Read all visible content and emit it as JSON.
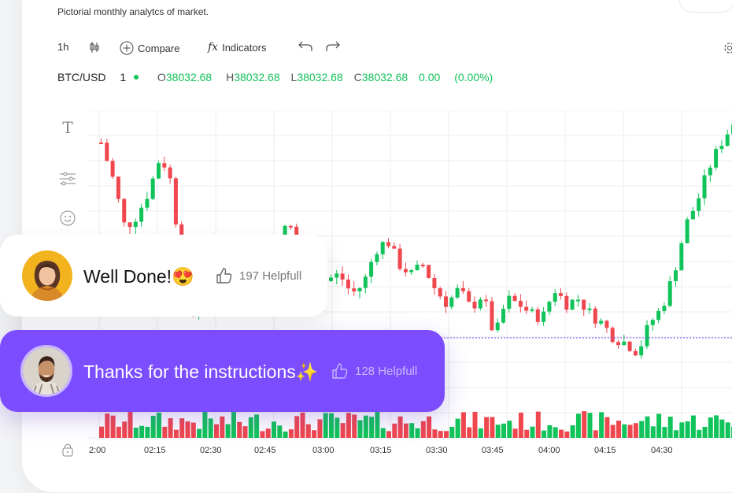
{
  "header": {
    "subtitle": "Pictorial monthly analytcs of market."
  },
  "toolbar": {
    "interval": "1h",
    "compare": "Compare",
    "indicators_glyph": "fx",
    "indicators": "Indicators"
  },
  "symbol": {
    "name": "BTC/USD",
    "interval": "1",
    "o_label": "O",
    "o": "38032.68",
    "h_label": "H",
    "h": "38032.68",
    "l_label": "L",
    "l": "38032.68",
    "c_label": "C",
    "c": "38032.68",
    "change": "0.00",
    "change_pct": "(0.00%)"
  },
  "xaxis": {
    "labels": [
      "2:00",
      "02:15",
      "02:30",
      "02:45",
      "03:00",
      "03:15",
      "03:30",
      "03:45",
      "04:00",
      "04:15",
      "04:30"
    ]
  },
  "chart_data": {
    "type": "candlestick",
    "x": [
      "2:00",
      "02:15",
      "02:30",
      "02:45",
      "03:00",
      "03:15",
      "03:30",
      "03:45",
      "04:00",
      "04:15",
      "04:30"
    ],
    "close_trend": [
      0.9,
      0.75,
      0.55,
      0.6,
      0.7,
      0.85,
      0.72,
      0.2,
      0.2,
      0.36,
      0.23,
      0.48,
      0.4,
      0.46,
      0.42,
      0.54,
      0.55,
      0.4,
      0.32,
      0.34,
      0.36,
      0.28,
      0.32,
      0.46,
      0.5,
      0.4,
      0.36,
      0.4,
      0.3,
      0.24,
      0.3,
      0.22,
      0.28,
      0.1,
      0.26,
      0.24,
      0.2,
      0.18,
      0.3,
      0.24,
      0.26,
      0.2,
      0.16,
      0.1,
      0.08,
      0.04,
      0.16,
      0.22,
      0.36,
      0.56,
      0.66,
      0.8,
      0.9,
      0.98
    ],
    "colors": {
      "up": "#10c35a",
      "down": "#f0474f",
      "dashed_line": "#7b4dff"
    }
  },
  "comments": [
    {
      "text": "Well Done!",
      "emoji": "😍",
      "helpful": "197 Helpfull"
    },
    {
      "text": "Thanks for the instructions",
      "emoji": "✨",
      "helpful": "128 Helpfull"
    }
  ]
}
